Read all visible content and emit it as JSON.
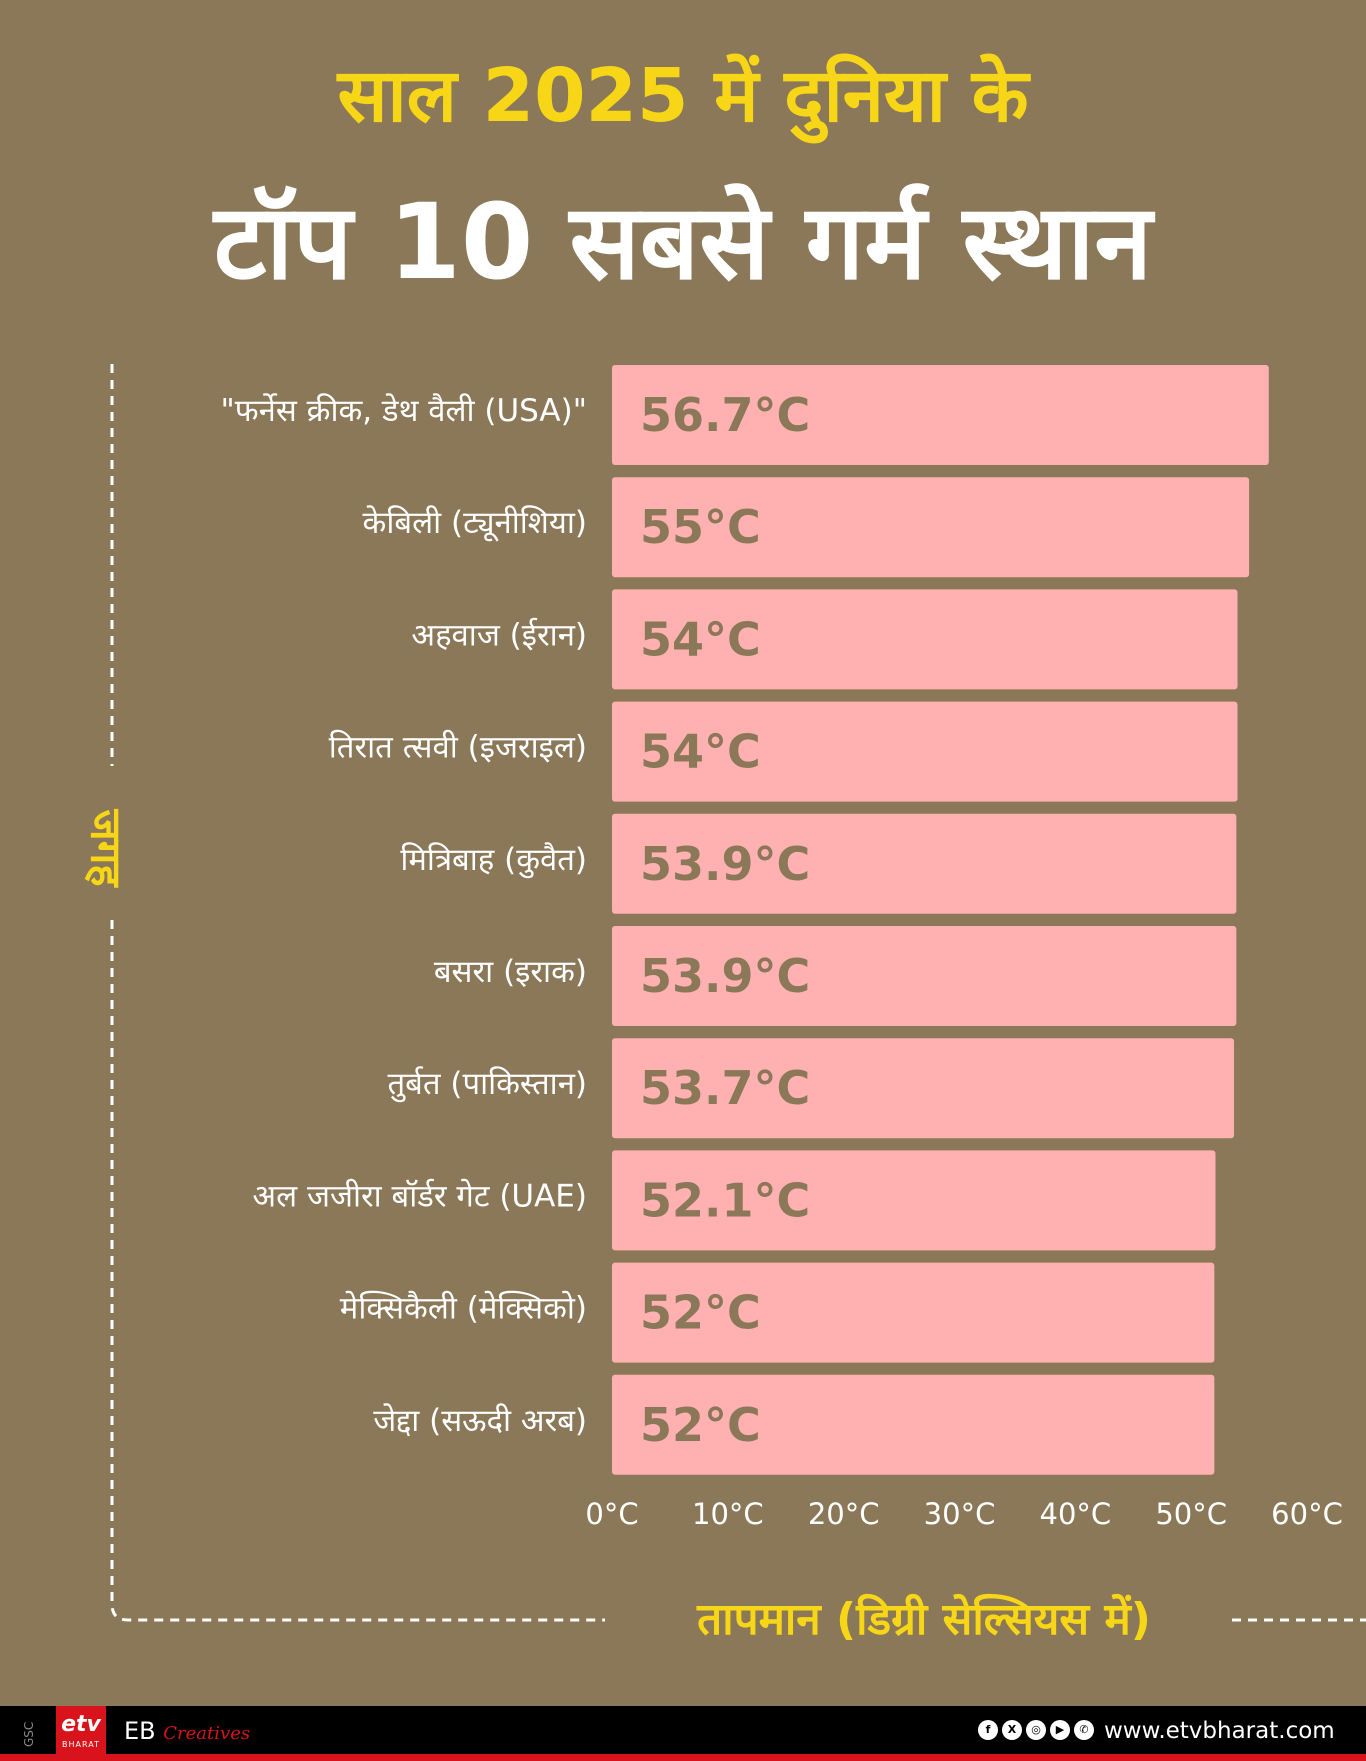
{
  "header": {
    "line1": "साल 2025 में दुनिया के",
    "line2": "टॉप 10 सबसे गर्म स्थान"
  },
  "chart_data": {
    "type": "bar",
    "orientation": "horizontal",
    "categories": [
      "\"फर्नेस क्रीक, डेथ वैली (USA)\"",
      "केबिली (ट्यूनीशिया)",
      "अहवाज (ईरान)",
      "तिरात त्सवी (इजराइल)",
      "मित्रिबाह (कुवैत)",
      "बसरा (इराक)",
      "तुर्बत (पाकिस्तान)",
      "अल जजीरा बॉर्डर गेट (UAE)",
      "मेक्सिकैली (मेक्सिको)",
      "जेद्दा (सऊदी अरब)"
    ],
    "values": [
      56.7,
      55,
      54,
      54,
      53.9,
      53.9,
      53.7,
      52.1,
      52,
      52
    ],
    "value_labels": [
      "56.7°C",
      "55°C",
      "54°C",
      "54°C",
      "53.9°C",
      "53.9°C",
      "53.7°C",
      "52.1°C",
      "52°C",
      "52°C"
    ],
    "xlabel": "तापमान (डिग्री सेल्सियस में)",
    "ylabel": "जगह",
    "xlim": [
      0,
      60
    ],
    "x_ticks": [
      0,
      10,
      20,
      30,
      40,
      50,
      60
    ],
    "x_tick_labels": [
      "0°C",
      "10°C",
      "20°C",
      "30°C",
      "40°C",
      "50°C",
      "60°C"
    ],
    "grid": false,
    "legend": "none",
    "colors": {
      "bar": "#ffb0b0",
      "value_text": "#8b7858",
      "background": "#8b7858",
      "accent": "#f7d617",
      "category_text": "#ffffff",
      "tick_text": "#ffffff"
    }
  },
  "footer": {
    "gsc": "GSC",
    "logo_main": "etv",
    "logo_sub": "BHARAT",
    "brand_prefix": "EB",
    "brand_suffix": "Creatives",
    "social_icons": [
      "facebook-icon",
      "x-icon",
      "instagram-icon",
      "youtube-icon",
      "whatsapp-icon"
    ],
    "url": "www.etvbharat.com"
  }
}
